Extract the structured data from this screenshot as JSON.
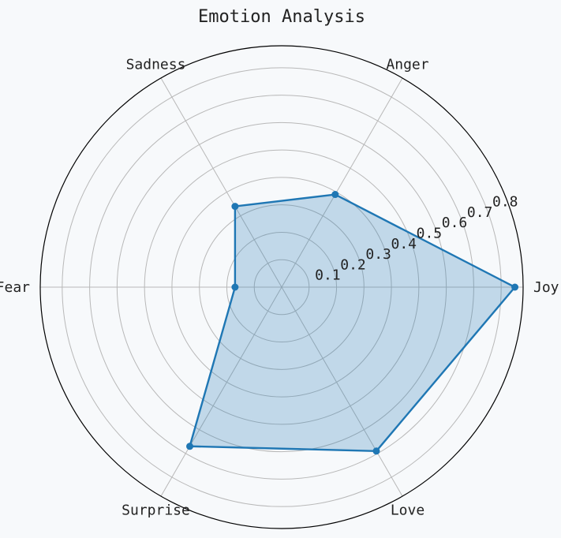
{
  "chart_data": {
    "type": "radar",
    "title": "Emotion Analysis",
    "categories": [
      "Joy",
      "Anger",
      "Sadness",
      "Fear",
      "Surprise",
      "Love"
    ],
    "series": [
      {
        "values": [
          0.85,
          0.39,
          0.34,
          0.17,
          0.67,
          0.69
        ]
      }
    ],
    "r_ticks": [
      0.1,
      0.2,
      0.3,
      0.4,
      0.5,
      0.6,
      0.7,
      0.8
    ],
    "r_tick_labels": [
      "0.1",
      "0.2",
      "0.3",
      "0.4",
      "0.5",
      "0.6",
      "0.7",
      "0.8"
    ],
    "rlim": [
      0,
      0.88
    ],
    "grid": true,
    "colors": {
      "series": "#1f77b4",
      "grid": "#b8b8b8",
      "background": "#f7f9fb"
    }
  }
}
